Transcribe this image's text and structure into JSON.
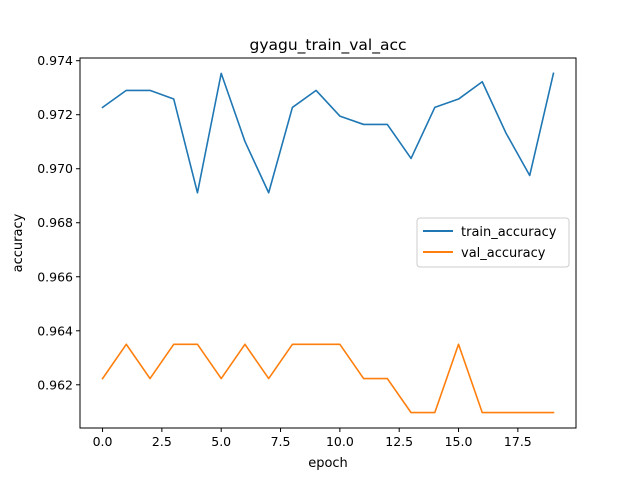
{
  "chart_data": {
    "type": "line",
    "title": "gyagu_train_val_acc",
    "xlabel": "epoch",
    "ylabel": "accuracy",
    "xlim": [
      -0.95,
      19.95
    ],
    "ylim": [
      0.9604,
      0.9741
    ],
    "xticks": [
      0.0,
      2.5,
      5.0,
      7.5,
      10.0,
      12.5,
      15.0,
      17.5
    ],
    "xtick_labels": [
      "0.0",
      "2.5",
      "5.0",
      "7.5",
      "10.0",
      "12.5",
      "15.0",
      "17.5"
    ],
    "yticks": [
      0.962,
      0.964,
      0.966,
      0.968,
      0.97,
      0.972,
      0.974
    ],
    "ytick_labels": [
      "0.962",
      "0.964",
      "0.966",
      "0.968",
      "0.970",
      "0.972",
      "0.974"
    ],
    "grid": false,
    "legend_position": "center-right",
    "x": [
      0,
      1,
      2,
      3,
      4,
      5,
      6,
      7,
      8,
      9,
      10,
      11,
      12,
      13,
      14,
      15,
      16,
      17,
      18,
      19
    ],
    "series": [
      {
        "name": "train_accuracy",
        "color": "#1f77b4",
        "values": [
          0.97227,
          0.9729,
          0.9729,
          0.97258,
          0.96911,
          0.97353,
          0.97101,
          0.96911,
          0.97227,
          0.9729,
          0.97195,
          0.97164,
          0.97164,
          0.97038,
          0.97227,
          0.97258,
          0.97322,
          0.97132,
          0.96975,
          0.97353
        ]
      },
      {
        "name": "val_accuracy",
        "color": "#ff7f0e",
        "values": [
          0.96223,
          0.9635,
          0.96223,
          0.9635,
          0.9635,
          0.96223,
          0.9635,
          0.96223,
          0.9635,
          0.9635,
          0.9635,
          0.96223,
          0.96223,
          0.96097,
          0.96097,
          0.9635,
          0.96097,
          0.96097,
          0.96097,
          0.96097
        ]
      }
    ]
  }
}
